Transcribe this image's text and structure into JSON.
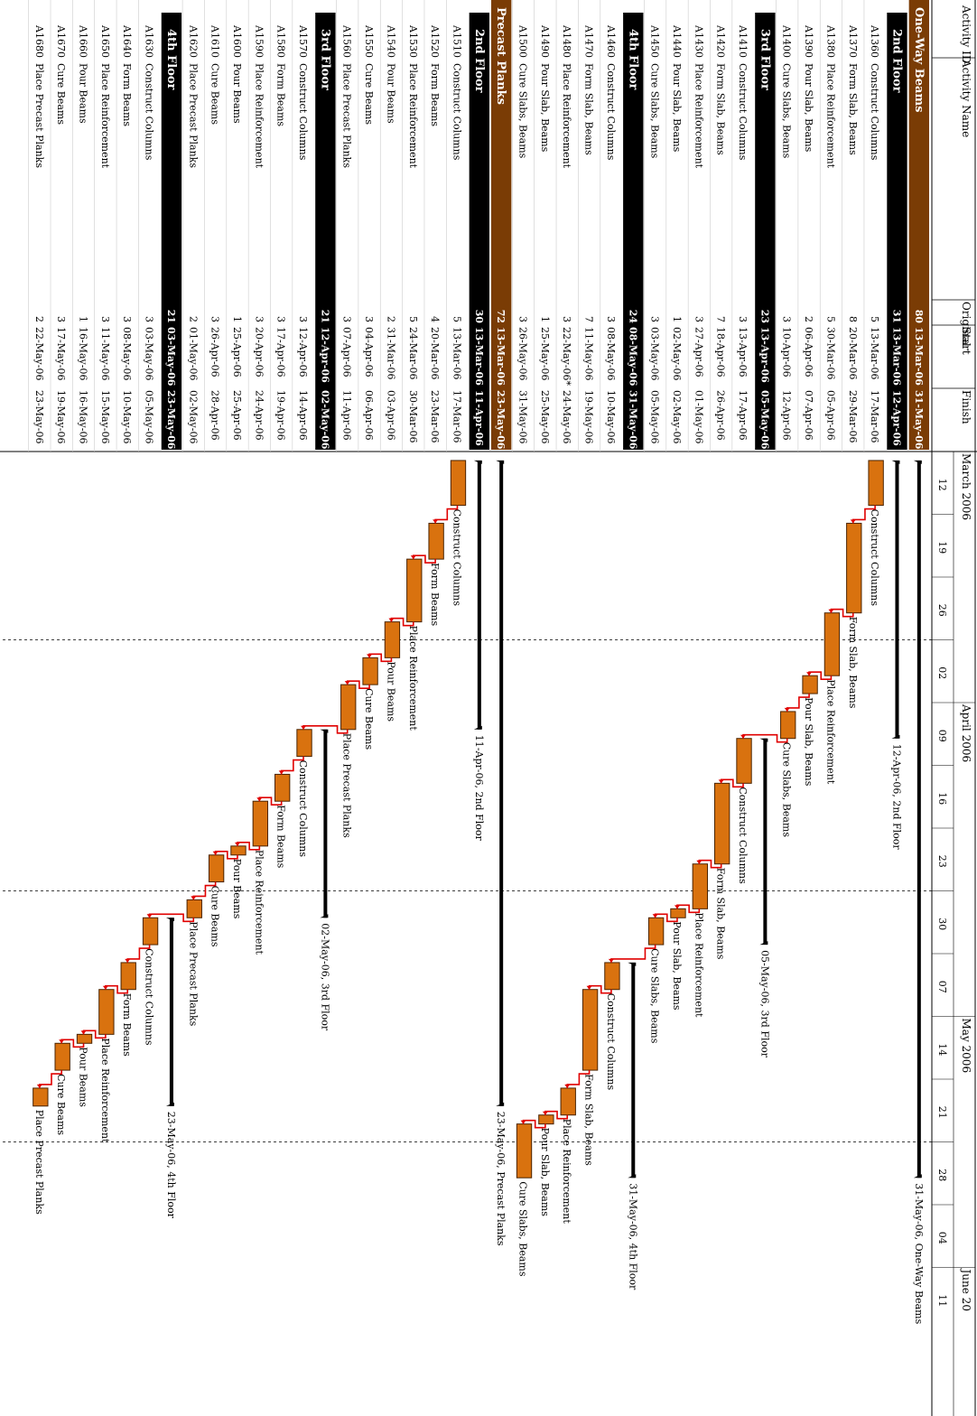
{
  "columns": {
    "id": "Activity ID",
    "name": "Activity Name",
    "duration": "Original",
    "start": "Start",
    "finish": "Finish"
  },
  "timescale": {
    "months": [
      {
        "label": "March 2006",
        "date": "2006-03-12"
      },
      {
        "label": "April 2006",
        "date": "2006-04-09"
      },
      {
        "label": "May 2006",
        "date": "2006-05-14"
      },
      {
        "label": "June 20",
        "date": "2006-06-11"
      }
    ],
    "weeks": [
      "12",
      "19",
      "26",
      "02",
      "09",
      "16",
      "23",
      "30",
      "07",
      "14",
      "21",
      "28",
      "04",
      "11"
    ],
    "first_week": "2006-03-12"
  },
  "colors": {
    "wbs_top": "#7a3c05",
    "wbs_sub": "#000000",
    "bar_fill": "#d9720f",
    "bar_stroke": "#4a2300",
    "link": "#e00000"
  },
  "chart_data": {
    "type": "gantt",
    "rows": [
      {
        "kind": "wbs1",
        "id": "",
        "name": "One-Way Beams",
        "duration": "80",
        "start": "13-Mar-06",
        "finish": "31-May-06",
        "s": "2006-03-13",
        "f": "2006-05-31",
        "label": "31-May-06, One-Way Beams"
      },
      {
        "kind": "wbs2",
        "id": "",
        "name": "2nd Floor",
        "duration": "31",
        "start": "13-Mar-06",
        "finish": "12-Apr-06",
        "s": "2006-03-13",
        "f": "2006-04-12",
        "label": "12-Apr-06, 2nd Floor"
      },
      {
        "kind": "act",
        "id": "A1360",
        "name": "Construct Columns",
        "duration": "5",
        "start": "13-Mar-06",
        "finish": "17-Mar-06",
        "s": "2006-03-13",
        "f": "2006-03-17"
      },
      {
        "kind": "act",
        "id": "A1370",
        "name": "Form Slab, Beams",
        "duration": "8",
        "start": "20-Mar-06",
        "finish": "29-Mar-06",
        "s": "2006-03-20",
        "f": "2006-03-29"
      },
      {
        "kind": "act",
        "id": "A1380",
        "name": "Place Reinforcement",
        "duration": "5",
        "start": "30-Mar-06",
        "finish": "05-Apr-06",
        "s": "2006-03-30",
        "f": "2006-04-05"
      },
      {
        "kind": "act",
        "id": "A1390",
        "name": "Pour Slab, Beams",
        "duration": "2",
        "start": "06-Apr-06",
        "finish": "07-Apr-06",
        "s": "2006-04-06",
        "f": "2006-04-07"
      },
      {
        "kind": "act",
        "id": "A1400",
        "name": "Cure Slabs, Beams",
        "duration": "3",
        "start": "10-Apr-06",
        "finish": "12-Apr-06",
        "s": "2006-04-10",
        "f": "2006-04-12"
      },
      {
        "kind": "wbs2",
        "id": "",
        "name": "3rd Floor",
        "duration": "23",
        "start": "13-Apr-06",
        "finish": "05-May-06",
        "s": "2006-04-13",
        "f": "2006-05-05",
        "label": "05-May-06, 3rd Floor"
      },
      {
        "kind": "act",
        "id": "A1410",
        "name": "Construct Columns",
        "duration": "3",
        "start": "13-Apr-06",
        "finish": "17-Apr-06",
        "s": "2006-04-13",
        "f": "2006-04-17"
      },
      {
        "kind": "act",
        "id": "A1420",
        "name": "Form Slab, Beams",
        "duration": "7",
        "start": "18-Apr-06",
        "finish": "26-Apr-06",
        "s": "2006-04-18",
        "f": "2006-04-26"
      },
      {
        "kind": "act",
        "id": "A1430",
        "name": "Place Reinforcement",
        "duration": "3",
        "start": "27-Apr-06",
        "finish": "01-May-06",
        "s": "2006-04-27",
        "f": "2006-05-01"
      },
      {
        "kind": "act",
        "id": "A1440",
        "name": "Pour Slab, Beams",
        "duration": "1",
        "start": "02-May-06",
        "finish": "02-May-06",
        "s": "2006-05-02",
        "f": "2006-05-02"
      },
      {
        "kind": "act",
        "id": "A1450",
        "name": "Cure Slabs, Beams",
        "duration": "3",
        "start": "03-May-06",
        "finish": "05-May-06",
        "s": "2006-05-03",
        "f": "2006-05-05"
      },
      {
        "kind": "wbs2",
        "id": "",
        "name": "4th Floor",
        "duration": "24",
        "start": "08-May-06",
        "finish": "31-May-06",
        "s": "2006-05-08",
        "f": "2006-05-31",
        "label": "31-May-06, 4th Floor"
      },
      {
        "kind": "act",
        "id": "A1460",
        "name": "Construct Columns",
        "duration": "3",
        "start": "08-May-06",
        "finish": "10-May-06",
        "s": "2006-05-08",
        "f": "2006-05-10"
      },
      {
        "kind": "act",
        "id": "A1470",
        "name": "Form Slab, Beams",
        "duration": "7",
        "start": "11-May-06",
        "finish": "19-May-06",
        "s": "2006-05-11",
        "f": "2006-05-19"
      },
      {
        "kind": "act",
        "id": "A1480",
        "name": "Place Reinforcement",
        "duration": "3",
        "start": "22-May-06*",
        "finish": "24-May-06",
        "s": "2006-05-22",
        "f": "2006-05-24"
      },
      {
        "kind": "act",
        "id": "A1490",
        "name": "Pour Slab, Beams",
        "duration": "1",
        "start": "25-May-06",
        "finish": "25-May-06",
        "s": "2006-05-25",
        "f": "2006-05-25"
      },
      {
        "kind": "act",
        "id": "A1500",
        "name": "Cure Slabs, Beams",
        "duration": "3",
        "start": "26-May-06",
        "finish": "31-May-06",
        "s": "2006-05-26",
        "f": "2006-05-31"
      },
      {
        "kind": "wbs1",
        "id": "",
        "name": "Precast Planks",
        "duration": "72",
        "start": "13-Mar-06",
        "finish": "23-May-06",
        "s": "2006-03-13",
        "f": "2006-05-23",
        "label": "23-May-06, Precast Planks"
      },
      {
        "kind": "wbs2",
        "id": "",
        "name": "2nd Floor",
        "duration": "30",
        "start": "13-Mar-06",
        "finish": "11-Apr-06",
        "s": "2006-03-13",
        "f": "2006-04-11",
        "label": "11-Apr-06, 2nd Floor"
      },
      {
        "kind": "act",
        "id": "A1510",
        "name": "Construct Columns",
        "duration": "5",
        "start": "13-Mar-06",
        "finish": "17-Mar-06",
        "s": "2006-03-13",
        "f": "2006-03-17"
      },
      {
        "kind": "act",
        "id": "A1520",
        "name": "Form Beams",
        "duration": "4",
        "start": "20-Mar-06",
        "finish": "23-Mar-06",
        "s": "2006-03-20",
        "f": "2006-03-23"
      },
      {
        "kind": "act",
        "id": "A1530",
        "name": "Place Reinforcement",
        "duration": "5",
        "start": "24-Mar-06",
        "finish": "30-Mar-06",
        "s": "2006-03-24",
        "f": "2006-03-30"
      },
      {
        "kind": "act",
        "id": "A1540",
        "name": "Pour Beams",
        "duration": "2",
        "start": "31-Mar-06",
        "finish": "03-Apr-06",
        "s": "2006-03-31",
        "f": "2006-04-03"
      },
      {
        "kind": "act",
        "id": "A1550",
        "name": "Cure Beams",
        "duration": "3",
        "start": "04-Apr-06",
        "finish": "06-Apr-06",
        "s": "2006-04-04",
        "f": "2006-04-06"
      },
      {
        "kind": "act",
        "id": "A1560",
        "name": "Place Precast Planks",
        "duration": "3",
        "start": "07-Apr-06",
        "finish": "11-Apr-06",
        "s": "2006-04-07",
        "f": "2006-04-11"
      },
      {
        "kind": "wbs2",
        "id": "",
        "name": "3rd Floor",
        "duration": "21",
        "start": "12-Apr-06",
        "finish": "02-May-06",
        "s": "2006-04-12",
        "f": "2006-05-02",
        "label": "02-May-06, 3rd Floor"
      },
      {
        "kind": "act",
        "id": "A1570",
        "name": "Construct Columns",
        "duration": "3",
        "start": "12-Apr-06",
        "finish": "14-Apr-06",
        "s": "2006-04-12",
        "f": "2006-04-14"
      },
      {
        "kind": "act",
        "id": "A1580",
        "name": "Form Beams",
        "duration": "3",
        "start": "17-Apr-06",
        "finish": "19-Apr-06",
        "s": "2006-04-17",
        "f": "2006-04-19"
      },
      {
        "kind": "act",
        "id": "A1590",
        "name": "Place Reinforcement",
        "duration": "3",
        "start": "20-Apr-06",
        "finish": "24-Apr-06",
        "s": "2006-04-20",
        "f": "2006-04-24"
      },
      {
        "kind": "act",
        "id": "A1600",
        "name": "Pour Beams",
        "duration": "1",
        "start": "25-Apr-06",
        "finish": "25-Apr-06",
        "s": "2006-04-25",
        "f": "2006-04-25"
      },
      {
        "kind": "act",
        "id": "A1610",
        "name": "Cure Beams",
        "duration": "3",
        "start": "26-Apr-06",
        "finish": "28-Apr-06",
        "s": "2006-04-26",
        "f": "2006-04-28"
      },
      {
        "kind": "act",
        "id": "A1620",
        "name": "Place Precast Planks",
        "duration": "2",
        "start": "01-May-06",
        "finish": "02-May-06",
        "s": "2006-05-01",
        "f": "2006-05-02"
      },
      {
        "kind": "wbs2",
        "id": "",
        "name": "4th Floor",
        "duration": "21",
        "start": "03-May-06",
        "finish": "23-May-06",
        "s": "2006-05-03",
        "f": "2006-05-23",
        "label": "23-May-06, 4th Floor"
      },
      {
        "kind": "act",
        "id": "A1630",
        "name": "Construct Columns",
        "duration": "3",
        "start": "03-May-06",
        "finish": "05-May-06",
        "s": "2006-05-03",
        "f": "2006-05-05"
      },
      {
        "kind": "act",
        "id": "A1640",
        "name": "Form Beams",
        "duration": "3",
        "start": "08-May-06",
        "finish": "10-May-06",
        "s": "2006-05-08",
        "f": "2006-05-10"
      },
      {
        "kind": "act",
        "id": "A1650",
        "name": "Place Reinforcement",
        "duration": "3",
        "start": "11-May-06",
        "finish": "15-May-06",
        "s": "2006-05-11",
        "f": "2006-05-15"
      },
      {
        "kind": "act",
        "id": "A1660",
        "name": "Pour Beams",
        "duration": "1",
        "start": "16-May-06",
        "finish": "16-May-06",
        "s": "2006-05-16",
        "f": "2006-05-16"
      },
      {
        "kind": "act",
        "id": "A1670",
        "name": "Cure Beams",
        "duration": "3",
        "start": "17-May-06",
        "finish": "19-May-06",
        "s": "2006-05-17",
        "f": "2006-05-19"
      },
      {
        "kind": "act",
        "id": "A1680",
        "name": "Place Precast Planks",
        "duration": "2",
        "start": "22-May-06",
        "finish": "23-May-06",
        "s": "2006-05-22",
        "f": "2006-05-23"
      }
    ]
  }
}
